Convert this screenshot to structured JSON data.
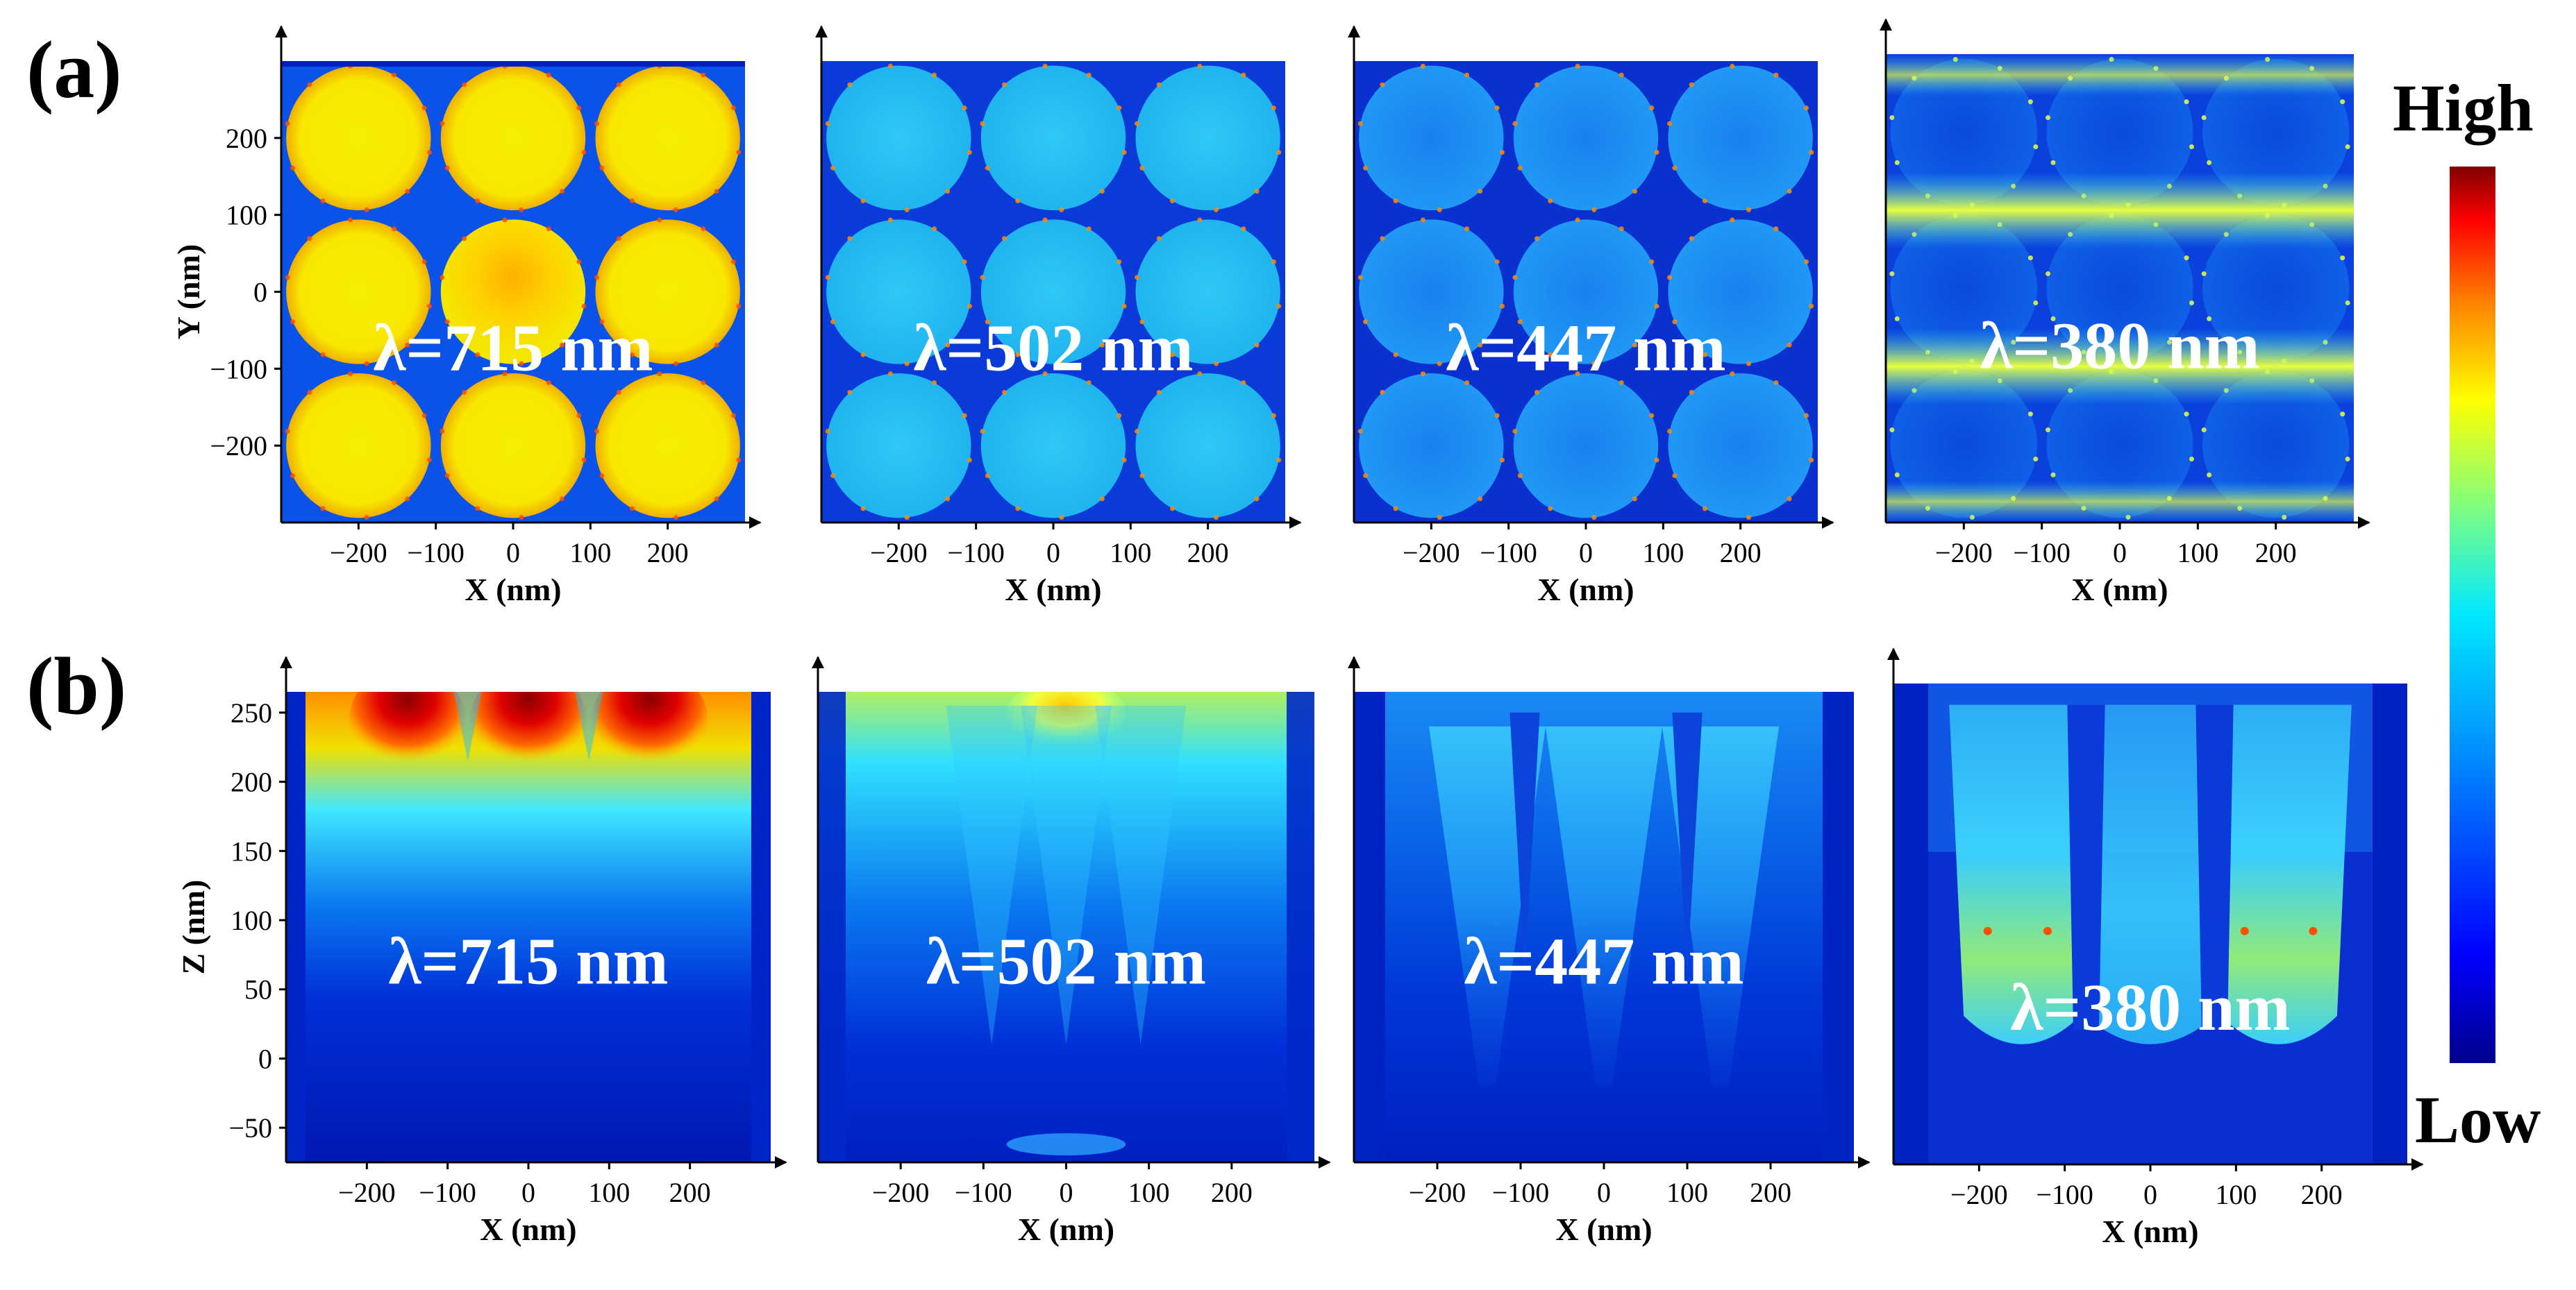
{
  "figure": {
    "panel_labels": [
      "(a)",
      "(b)"
    ],
    "colorbar": {
      "high_label": "High",
      "low_label": "Low",
      "colors": [
        "#00008c",
        "#0000ff",
        "#0080ff",
        "#00e0ff",
        "#80ff80",
        "#ffff00",
        "#ff8000",
        "#ff0000",
        "#800000"
      ]
    },
    "panels": [
      {
        "row": "a",
        "wavelength_label": "λ=715 nm",
        "xlabel": "X (nm)",
        "ylabel": "Y (nm)",
        "xticks": [
          -200,
          -100,
          0,
          100,
          200
        ],
        "yticks": [
          200,
          100,
          0,
          -100,
          -200
        ],
        "xlim": [
          -300,
          300
        ],
        "ylim": [
          -300,
          300
        ],
        "palette": "hot-yellow"
      },
      {
        "row": "a",
        "wavelength_label": "λ=502 nm",
        "xlabel": "X (nm)",
        "ylabel": "",
        "xticks": [
          -200,
          -100,
          0,
          100,
          200
        ],
        "yticks": [],
        "xlim": [
          -300,
          300
        ],
        "ylim": [
          -300,
          300
        ],
        "palette": "cyan"
      },
      {
        "row": "a",
        "wavelength_label": "λ=447 nm",
        "xlabel": "X (nm)",
        "ylabel": "",
        "xticks": [
          -200,
          -100,
          0,
          100,
          200
        ],
        "yticks": [],
        "xlim": [
          -300,
          300
        ],
        "ylim": [
          -300,
          300
        ],
        "palette": "blue-cyan"
      },
      {
        "row": "a",
        "wavelength_label": "λ=380 nm",
        "xlabel": "X (nm)",
        "ylabel": "",
        "xticks": [
          -200,
          -100,
          0,
          100,
          200
        ],
        "yticks": [],
        "xlim": [
          -300,
          300
        ],
        "ylim": [
          -300,
          300
        ],
        "palette": "banded"
      },
      {
        "row": "b",
        "wavelength_label": "λ=715 nm",
        "xlabel": "X (nm)",
        "ylabel": "Z (nm)",
        "xticks": [
          -200,
          -100,
          0,
          100,
          200
        ],
        "yticks": [
          250,
          200,
          150,
          100,
          50,
          0,
          -50
        ],
        "xlim": [
          -300,
          300
        ],
        "ylim": [
          -75,
          265
        ],
        "palette": "top-red"
      },
      {
        "row": "b",
        "wavelength_label": "λ=502 nm",
        "xlabel": "X (nm)",
        "ylabel": "",
        "xticks": [
          -200,
          -100,
          0,
          100,
          200
        ],
        "yticks": [],
        "xlim": [
          -300,
          300
        ],
        "ylim": [
          -75,
          265
        ],
        "palette": "top-yellow"
      },
      {
        "row": "b",
        "wavelength_label": "λ=447 nm",
        "xlabel": "X (nm)",
        "ylabel": "",
        "xticks": [
          -200,
          -100,
          0,
          100,
          200
        ],
        "yticks": [],
        "xlim": [
          -300,
          300
        ],
        "ylim": [
          -75,
          265
        ],
        "palette": "cones-blue"
      },
      {
        "row": "b",
        "wavelength_label": "λ=380 nm",
        "xlabel": "X (nm)",
        "ylabel": "",
        "xticks": [
          -200,
          -100,
          0,
          100,
          200
        ],
        "yticks": [],
        "xlim": [
          -300,
          300
        ],
        "ylim": [
          -75,
          265
        ],
        "palette": "pillars"
      }
    ]
  }
}
